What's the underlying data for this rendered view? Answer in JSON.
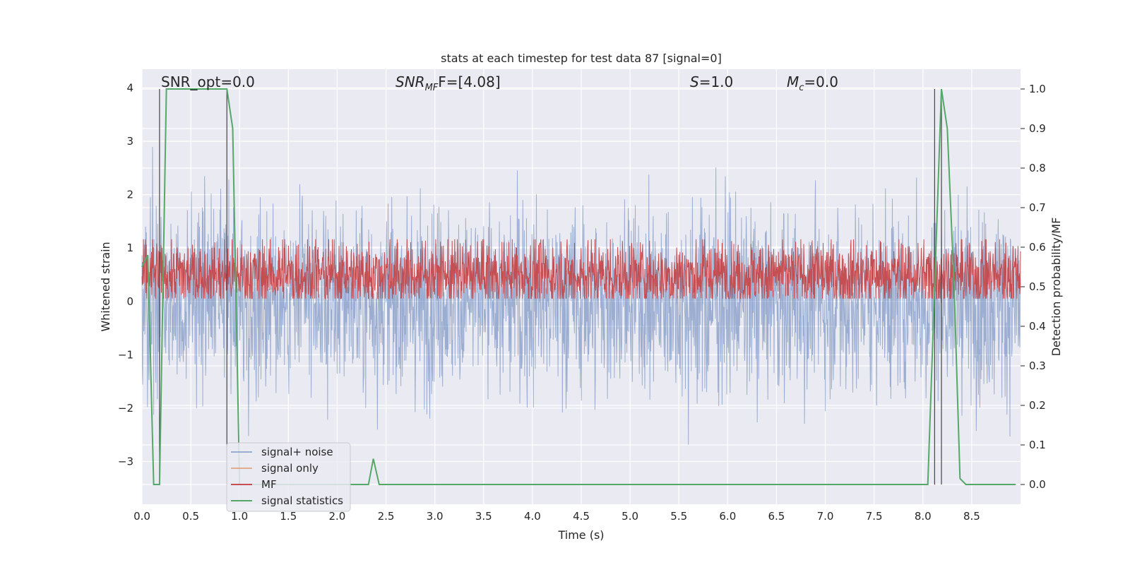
{
  "chart_data": {
    "type": "line",
    "title": "stats at each timestep for test data 87 [signal=0]",
    "xlabel": "Time (s)",
    "ylabel_left": "Whitened strain",
    "ylabel_right": "Detection probability/MF",
    "xlim": [
      0.0,
      9.0
    ],
    "ylim_left": [
      -3.8,
      4.35
    ],
    "ylim_right": [
      -0.05,
      1.05
    ],
    "xticks": [
      "0.0",
      "0.5",
      "1.0",
      "1.5",
      "2.0",
      "2.5",
      "3.0",
      "3.5",
      "4.0",
      "4.5",
      "5.0",
      "5.5",
      "6.0",
      "6.5",
      "7.0",
      "7.5",
      "8.0",
      "8.5"
    ],
    "yticks_left": [
      "−3",
      "−2",
      "−1",
      "0",
      "1",
      "2",
      "3",
      "4"
    ],
    "yticks_right": [
      "0.0",
      "0.1",
      "0.2",
      "0.3",
      "0.4",
      "0.5",
      "0.6",
      "0.7",
      "0.8",
      "0.9",
      "1.0"
    ],
    "annotations": {
      "snr_opt": "SNR_opt=0.0",
      "snr_mf_main": "SNR",
      "snr_mf_sub": "MF",
      "snr_mf_tail": "F=[4.08]",
      "s_main": "S",
      "s_tail": "=1.0",
      "mc_main": "M",
      "mc_sub": "c",
      "mc_tail": "=0.0"
    },
    "grid": true,
    "legend_position": "lower-left",
    "series": [
      {
        "name": "signal+ noise",
        "color": "#4c72b0",
        "description_range": [
          -3.1,
          4.0
        ]
      },
      {
        "name": "signal only",
        "color": "#dd8452",
        "values": []
      },
      {
        "name": "MF",
        "color": "#c44e52",
        "description_range": [
          0.0,
          1.0
        ]
      },
      {
        "name": "signal statistics",
        "color": "#55a868",
        "axis": "right",
        "x": [
          0.0,
          0.06,
          0.12,
          0.18,
          0.25,
          0.87,
          0.93,
          1.0,
          2.25,
          2.32,
          2.37,
          2.43,
          2.5,
          8.05,
          8.12,
          8.19,
          8.25,
          8.32,
          8.38,
          8.44,
          8.95
        ],
        "y": [
          0.55,
          0.58,
          0.0,
          0.0,
          1.0,
          1.0,
          0.9,
          0.0,
          0.0,
          0.0,
          0.065,
          0.0,
          0.0,
          0.0,
          0.5,
          1.0,
          0.9,
          0.5,
          0.015,
          0.0,
          0.0
        ]
      }
    ],
    "vlines_x": [
      0.18,
      0.87,
      8.12,
      8.19
    ]
  },
  "legend": {
    "items": [
      {
        "label": "signal+ noise",
        "color": "#4c72b0"
      },
      {
        "label": "signal only",
        "color": "#dd8452"
      },
      {
        "label": "MF",
        "color": "#c44e52"
      },
      {
        "label": "signal statistics",
        "color": "#55a868"
      }
    ]
  }
}
